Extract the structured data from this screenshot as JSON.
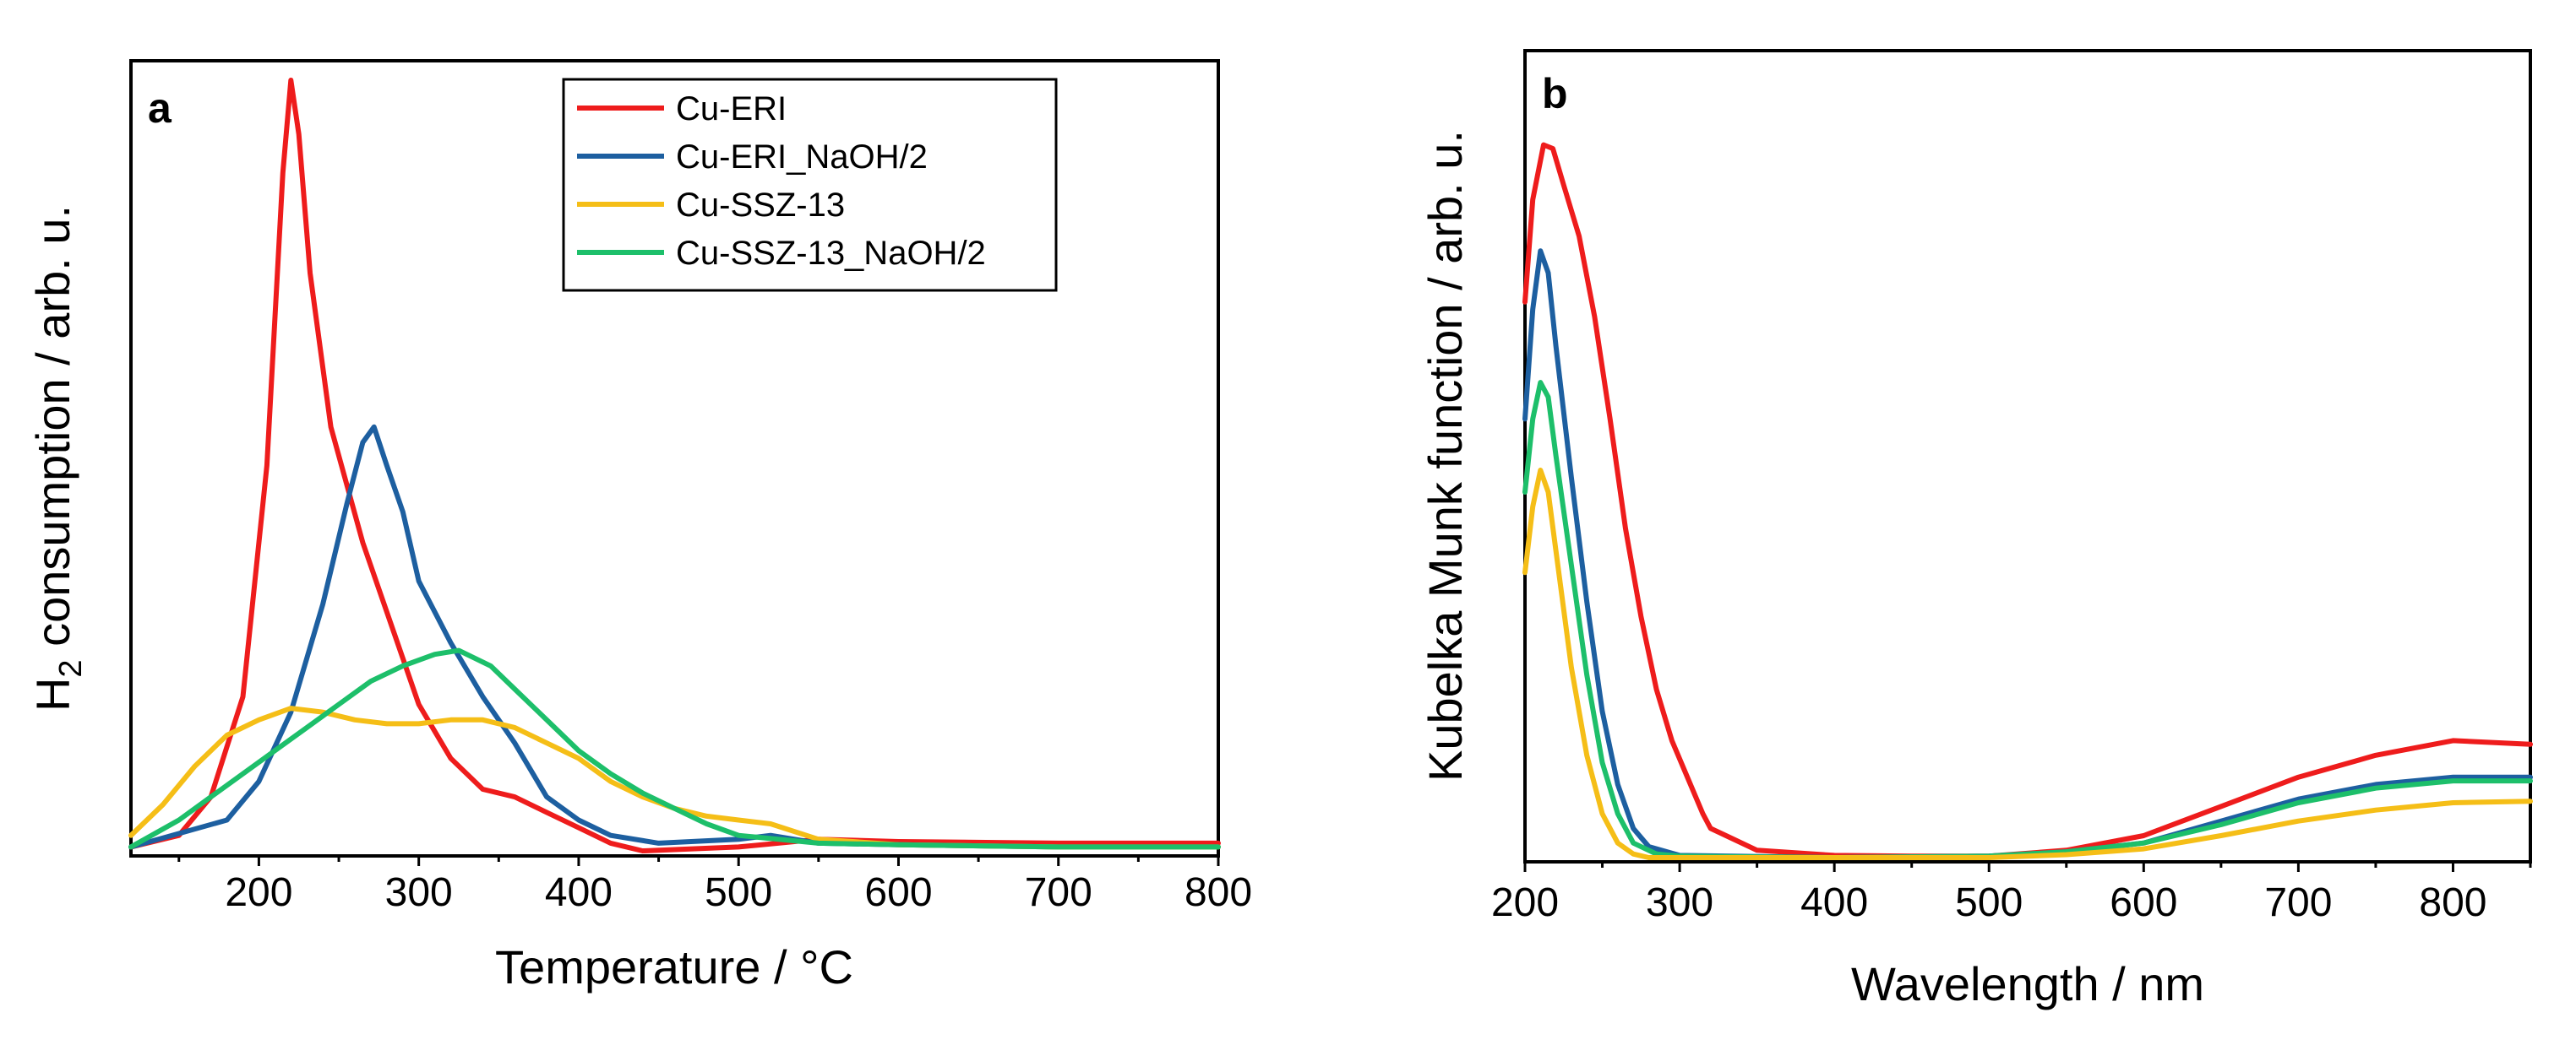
{
  "chart_data": [
    {
      "panel": "a",
      "type": "line",
      "xlabel": "Temperature / °C",
      "ylabel_main": "H",
      "ylabel_sub": "2",
      "ylabel_rest": " consumption / arb. u.",
      "xlim": [
        120,
        800
      ],
      "ylim": [
        0,
        1.0
      ],
      "xticks": [
        200,
        300,
        400,
        500,
        600,
        700,
        800
      ],
      "legend": {
        "position": "top-center"
      },
      "series": [
        {
          "name": "Cu-ERI",
          "color": "#ee1c1c",
          "points": [
            [
              120,
              0.005
            ],
            [
              150,
              0.02
            ],
            [
              170,
              0.07
            ],
            [
              190,
              0.2
            ],
            [
              205,
              0.5
            ],
            [
              215,
              0.88
            ],
            [
              220,
              1.0
            ],
            [
              225,
              0.93
            ],
            [
              232,
              0.75
            ],
            [
              245,
              0.55
            ],
            [
              265,
              0.4
            ],
            [
              285,
              0.28
            ],
            [
              300,
              0.19
            ],
            [
              320,
              0.12
            ],
            [
              340,
              0.08
            ],
            [
              360,
              0.07
            ],
            [
              380,
              0.05
            ],
            [
              400,
              0.03
            ],
            [
              420,
              0.01
            ],
            [
              440,
              0.0
            ],
            [
              500,
              0.005
            ],
            [
              550,
              0.015
            ],
            [
              600,
              0.012
            ],
            [
              700,
              0.01
            ],
            [
              800,
              0.01
            ]
          ]
        },
        {
          "name": "Cu-ERI_NaOH/2",
          "color": "#1d5fa0",
          "points": [
            [
              120,
              0.005
            ],
            [
              180,
              0.04
            ],
            [
              200,
              0.09
            ],
            [
              220,
              0.18
            ],
            [
              240,
              0.32
            ],
            [
              255,
              0.45
            ],
            [
              265,
              0.53
            ],
            [
              272,
              0.55
            ],
            [
              280,
              0.5
            ],
            [
              290,
              0.44
            ],
            [
              300,
              0.35
            ],
            [
              320,
              0.27
            ],
            [
              340,
              0.2
            ],
            [
              360,
              0.14
            ],
            [
              380,
              0.07
            ],
            [
              400,
              0.04
            ],
            [
              420,
              0.02
            ],
            [
              450,
              0.01
            ],
            [
              500,
              0.015
            ],
            [
              520,
              0.02
            ],
            [
              550,
              0.01
            ],
            [
              600,
              0.008
            ],
            [
              700,
              0.005
            ],
            [
              800,
              0.005
            ]
          ]
        },
        {
          "name": "Cu-SSZ-13",
          "color": "#f5be17",
          "points": [
            [
              120,
              0.02
            ],
            [
              140,
              0.06
            ],
            [
              160,
              0.11
            ],
            [
              180,
              0.15
            ],
            [
              200,
              0.17
            ],
            [
              220,
              0.185
            ],
            [
              240,
              0.18
            ],
            [
              260,
              0.17
            ],
            [
              280,
              0.165
            ],
            [
              300,
              0.165
            ],
            [
              320,
              0.17
            ],
            [
              340,
              0.17
            ],
            [
              360,
              0.16
            ],
            [
              380,
              0.14
            ],
            [
              400,
              0.12
            ],
            [
              420,
              0.09
            ],
            [
              440,
              0.07
            ],
            [
              460,
              0.055
            ],
            [
              480,
              0.045
            ],
            [
              500,
              0.04
            ],
            [
              520,
              0.035
            ],
            [
              550,
              0.015
            ],
            [
              600,
              0.008
            ],
            [
              700,
              0.005
            ],
            [
              800,
              0.005
            ]
          ]
        },
        {
          "name": "Cu-SSZ-13_NaOH/2",
          "color": "#1dbf6a",
          "points": [
            [
              120,
              0.005
            ],
            [
              150,
              0.04
            ],
            [
              170,
              0.07
            ],
            [
              190,
              0.1
            ],
            [
              210,
              0.13
            ],
            [
              230,
              0.16
            ],
            [
              250,
              0.19
            ],
            [
              270,
              0.22
            ],
            [
              290,
              0.24
            ],
            [
              310,
              0.255
            ],
            [
              325,
              0.26
            ],
            [
              345,
              0.24
            ],
            [
              360,
              0.21
            ],
            [
              380,
              0.17
            ],
            [
              400,
              0.13
            ],
            [
              420,
              0.1
            ],
            [
              440,
              0.075
            ],
            [
              460,
              0.055
            ],
            [
              480,
              0.035
            ],
            [
              500,
              0.02
            ],
            [
              550,
              0.01
            ],
            [
              600,
              0.008
            ],
            [
              700,
              0.005
            ],
            [
              800,
              0.005
            ]
          ]
        }
      ]
    },
    {
      "panel": "b",
      "type": "line",
      "xlabel": "Wavelength / nm",
      "ylabel": "Kubelka Munk function / arb. u.",
      "xlim": [
        200,
        850
      ],
      "ylim": [
        0,
        1.0
      ],
      "xticks": [
        200,
        300,
        400,
        500,
        600,
        700,
        800
      ],
      "series": [
        {
          "name": "Cu-ERI",
          "color": "#ee1c1c",
          "points": [
            [
              200,
              0.76
            ],
            [
              205,
              0.9
            ],
            [
              212,
              0.975
            ],
            [
              218,
              0.97
            ],
            [
              225,
              0.92
            ],
            [
              235,
              0.85
            ],
            [
              245,
              0.74
            ],
            [
              255,
              0.6
            ],
            [
              265,
              0.45
            ],
            [
              275,
              0.33
            ],
            [
              285,
              0.23
            ],
            [
              295,
              0.16
            ],
            [
              305,
              0.11
            ],
            [
              315,
              0.06
            ],
            [
              320,
              0.04
            ],
            [
              330,
              0.03
            ],
            [
              350,
              0.01
            ],
            [
              400,
              0.003
            ],
            [
              450,
              0.002
            ],
            [
              500,
              0.002
            ],
            [
              550,
              0.01
            ],
            [
              600,
              0.03
            ],
            [
              650,
              0.07
            ],
            [
              700,
              0.11
            ],
            [
              750,
              0.14
            ],
            [
              800,
              0.16
            ],
            [
              850,
              0.155
            ]
          ]
        },
        {
          "name": "Cu-ERI_NaOH/2",
          "color": "#1d5fa0",
          "points": [
            [
              200,
              0.6
            ],
            [
              205,
              0.75
            ],
            [
              210,
              0.83
            ],
            [
              215,
              0.8
            ],
            [
              220,
              0.7
            ],
            [
              230,
              0.52
            ],
            [
              240,
              0.35
            ],
            [
              250,
              0.2
            ],
            [
              260,
              0.1
            ],
            [
              270,
              0.04
            ],
            [
              280,
              0.015
            ],
            [
              300,
              0.003
            ],
            [
              400,
              0.0
            ],
            [
              500,
              0.002
            ],
            [
              550,
              0.008
            ],
            [
              600,
              0.02
            ],
            [
              650,
              0.05
            ],
            [
              700,
              0.08
            ],
            [
              750,
              0.1
            ],
            [
              800,
              0.11
            ],
            [
              850,
              0.11
            ]
          ]
        },
        {
          "name": "Cu-SSZ-13_NaOH/2",
          "color": "#1dbf6a",
          "points": [
            [
              200,
              0.5
            ],
            [
              205,
              0.6
            ],
            [
              210,
              0.65
            ],
            [
              215,
              0.63
            ],
            [
              220,
              0.55
            ],
            [
              230,
              0.4
            ],
            [
              240,
              0.25
            ],
            [
              250,
              0.13
            ],
            [
              260,
              0.06
            ],
            [
              270,
              0.02
            ],
            [
              285,
              0.005
            ],
            [
              300,
              0.002
            ],
            [
              400,
              0.0
            ],
            [
              500,
              0.002
            ],
            [
              550,
              0.008
            ],
            [
              600,
              0.02
            ],
            [
              650,
              0.045
            ],
            [
              700,
              0.075
            ],
            [
              750,
              0.095
            ],
            [
              800,
              0.105
            ],
            [
              850,
              0.105
            ]
          ]
        },
        {
          "name": "Cu-SSZ-13",
          "color": "#f5be17",
          "points": [
            [
              200,
              0.39
            ],
            [
              205,
              0.48
            ],
            [
              210,
              0.53
            ],
            [
              215,
              0.5
            ],
            [
              220,
              0.42
            ],
            [
              230,
              0.26
            ],
            [
              240,
              0.14
            ],
            [
              250,
              0.06
            ],
            [
              260,
              0.02
            ],
            [
              270,
              0.005
            ],
            [
              280,
              0.0
            ],
            [
              400,
              0.0
            ],
            [
              500,
              0.0
            ],
            [
              550,
              0.004
            ],
            [
              600,
              0.012
            ],
            [
              650,
              0.03
            ],
            [
              700,
              0.05
            ],
            [
              750,
              0.065
            ],
            [
              800,
              0.075
            ],
            [
              850,
              0.077
            ]
          ]
        }
      ]
    }
  ]
}
